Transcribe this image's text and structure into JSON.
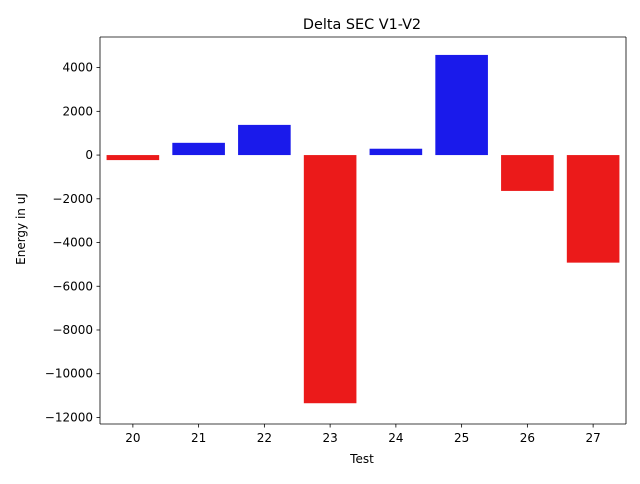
{
  "chart_data": {
    "type": "bar",
    "title": "Delta SEC V1-V2",
    "xlabel": "Test",
    "ylabel": "Energy in uJ",
    "categories": [
      "20",
      "21",
      "22",
      "23",
      "24",
      "25",
      "26",
      "27"
    ],
    "values": [
      -230,
      560,
      1380,
      -11350,
      290,
      4580,
      -1640,
      -4920
    ],
    "ylim": [
      -12300,
      5400
    ],
    "yticks": [
      -12000,
      -10000,
      -8000,
      -6000,
      -4000,
      -2000,
      0,
      2000,
      4000
    ],
    "ytick_labels": [
      "−12000",
      "−10000",
      "−8000",
      "−6000",
      "−4000",
      "−2000",
      "0",
      "2000",
      "4000"
    ],
    "grid": false,
    "legend": "none",
    "colors": {
      "positive": "#1a1aeb",
      "negative": "#eb1a1a",
      "axis": "#000000"
    }
  }
}
